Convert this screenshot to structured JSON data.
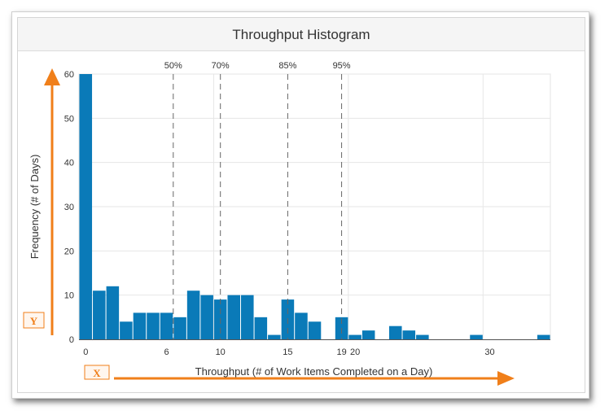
{
  "chart_data": {
    "type": "bar",
    "title": "Throughput Histogram",
    "xlabel": "Throughput (# of Work Items Completed on a Day)",
    "ylabel": "Frequency (# of Days)",
    "xlim": [
      0,
      35
    ],
    "ylim": [
      0,
      60
    ],
    "x_ticks": [
      0,
      6,
      10,
      15,
      19,
      20,
      30
    ],
    "y_ticks": [
      0,
      10,
      20,
      30,
      40,
      50,
      60
    ],
    "x": [
      0,
      1,
      2,
      3,
      4,
      5,
      6,
      7,
      8,
      9,
      10,
      11,
      12,
      13,
      14,
      15,
      16,
      17,
      18,
      19,
      20,
      21,
      22,
      23,
      24,
      25,
      26,
      27,
      28,
      29,
      30,
      31,
      32,
      33,
      34
    ],
    "values": [
      60,
      11,
      12,
      4,
      6,
      6,
      6,
      5,
      11,
      10,
      9,
      10,
      10,
      5,
      1,
      9,
      6,
      4,
      0,
      5,
      1,
      2,
      0,
      3,
      2,
      1,
      0,
      0,
      0,
      1,
      0,
      0,
      0,
      0,
      1
    ],
    "bar_color": "#0a7ab8",
    "grid": true,
    "percentiles": [
      {
        "label": "50%",
        "value": 6.5
      },
      {
        "label": "70%",
        "value": 10
      },
      {
        "label": "85%",
        "value": 15
      },
      {
        "label": "95%",
        "value": 19
      }
    ],
    "annotation_color": "#f07f1a",
    "x_tag": "X",
    "y_tag": "Y"
  }
}
